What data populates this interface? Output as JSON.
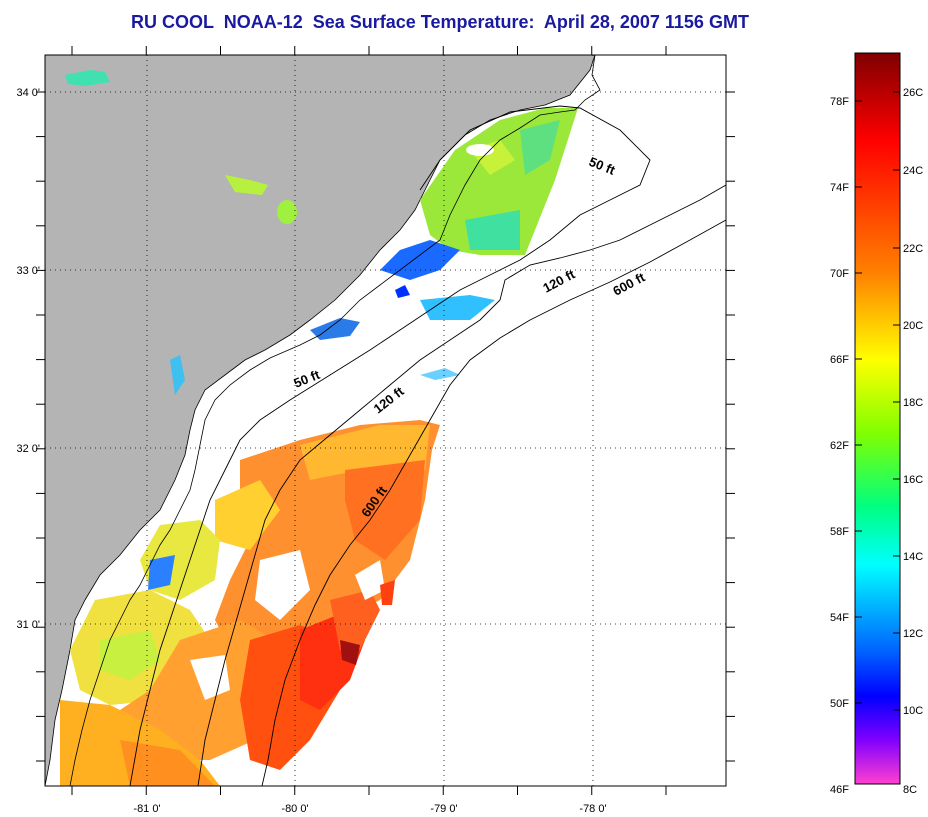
{
  "title": "RU COOL  NOAA-12  Sea Surface Temperature:  April 28, 2007 1156 GMT",
  "map": {
    "lon_labels": [
      "-81 0'",
      "-80 0'",
      "-79 0'",
      "-78 0'"
    ],
    "lat_labels": [
      "34 0'",
      "33 0'",
      "32 0'",
      "31 0'"
    ],
    "land_color": "#b4b4b4",
    "no_data_color": "#ffffff",
    "grid": "dotted",
    "coastline_color": "#000000"
  },
  "contours": [
    {
      "name": "50 ft",
      "label": "50 ft"
    },
    {
      "name": "120 ft",
      "label": "120 ft"
    },
    {
      "name": "600 ft",
      "label": "600 ft"
    }
  ],
  "colorbar": {
    "fahrenheit_labels": [
      "78F",
      "74F",
      "70F",
      "66F",
      "62F",
      "58F",
      "54F",
      "50F",
      "46F"
    ],
    "celsius_labels": [
      "26C",
      "24C",
      "22C",
      "20C",
      "18C",
      "16C",
      "14C",
      "12C",
      "10C",
      "8C"
    ],
    "colors": [
      "#8b0000",
      "#ff0000",
      "#ff8000",
      "#ffff00",
      "#80ff00",
      "#00ff80",
      "#00ffff",
      "#0080ff",
      "#0000ff",
      "#8000ff",
      "#ff40c0"
    ]
  }
}
